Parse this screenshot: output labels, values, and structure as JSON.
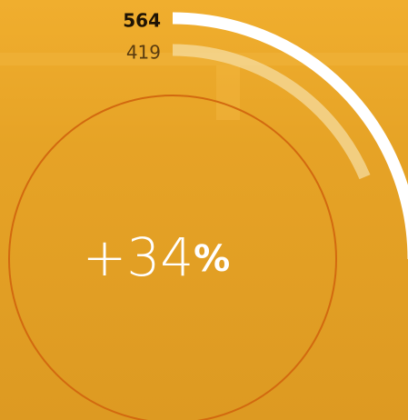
{
  "chart_data": {
    "type": "radial-bar",
    "series": [
      {
        "name": "564",
        "values": [
          564
        ],
        "color": "#ffffff"
      },
      {
        "name": "419",
        "values": [
          419
        ],
        "color": "#f6dfa6"
      }
    ],
    "change": {
      "number": "+34",
      "unit": "%"
    }
  }
}
